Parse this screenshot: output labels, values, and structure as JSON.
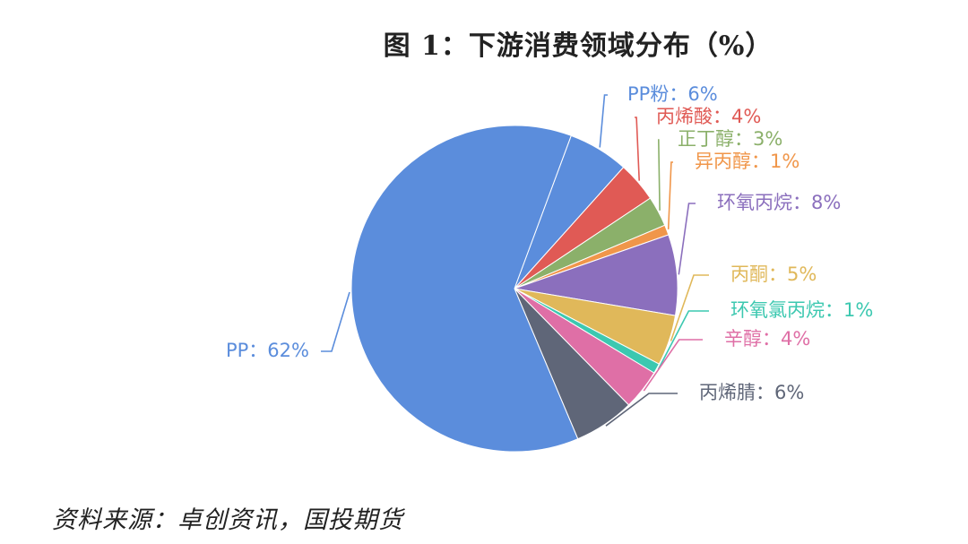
{
  "chart_data": {
    "type": "pie",
    "title": "图 1：下游消费领域分布（%）",
    "source": "资料来源：卓创资讯，国投期货",
    "slices": [
      {
        "label": "PP粉：6%",
        "value": 6,
        "color": "#5b8ddc"
      },
      {
        "label": "丙烯酸：4%",
        "value": 4,
        "color": "#e05a55"
      },
      {
        "label": "正丁醇：3%",
        "value": 3,
        "color": "#8bb06a"
      },
      {
        "label": "异丙醇：1%",
        "value": 1,
        "color": "#f0964a"
      },
      {
        "label": "环氧丙烷：8%",
        "value": 8,
        "color": "#8b6fbd"
      },
      {
        "label": "丙酮：5%",
        "value": 5,
        "color": "#e0b85a"
      },
      {
        "label": "环氧氯丙烷：1%",
        "value": 1,
        "color": "#3cc8b0"
      },
      {
        "label": "辛醇：4%",
        "value": 4,
        "color": "#df6fa6"
      },
      {
        "label": "丙烯腈：6%",
        "value": 6,
        "color": "#5f6678"
      },
      {
        "label": "PP：62%",
        "value": 62,
        "color": "#5b8ddc"
      }
    ]
  }
}
